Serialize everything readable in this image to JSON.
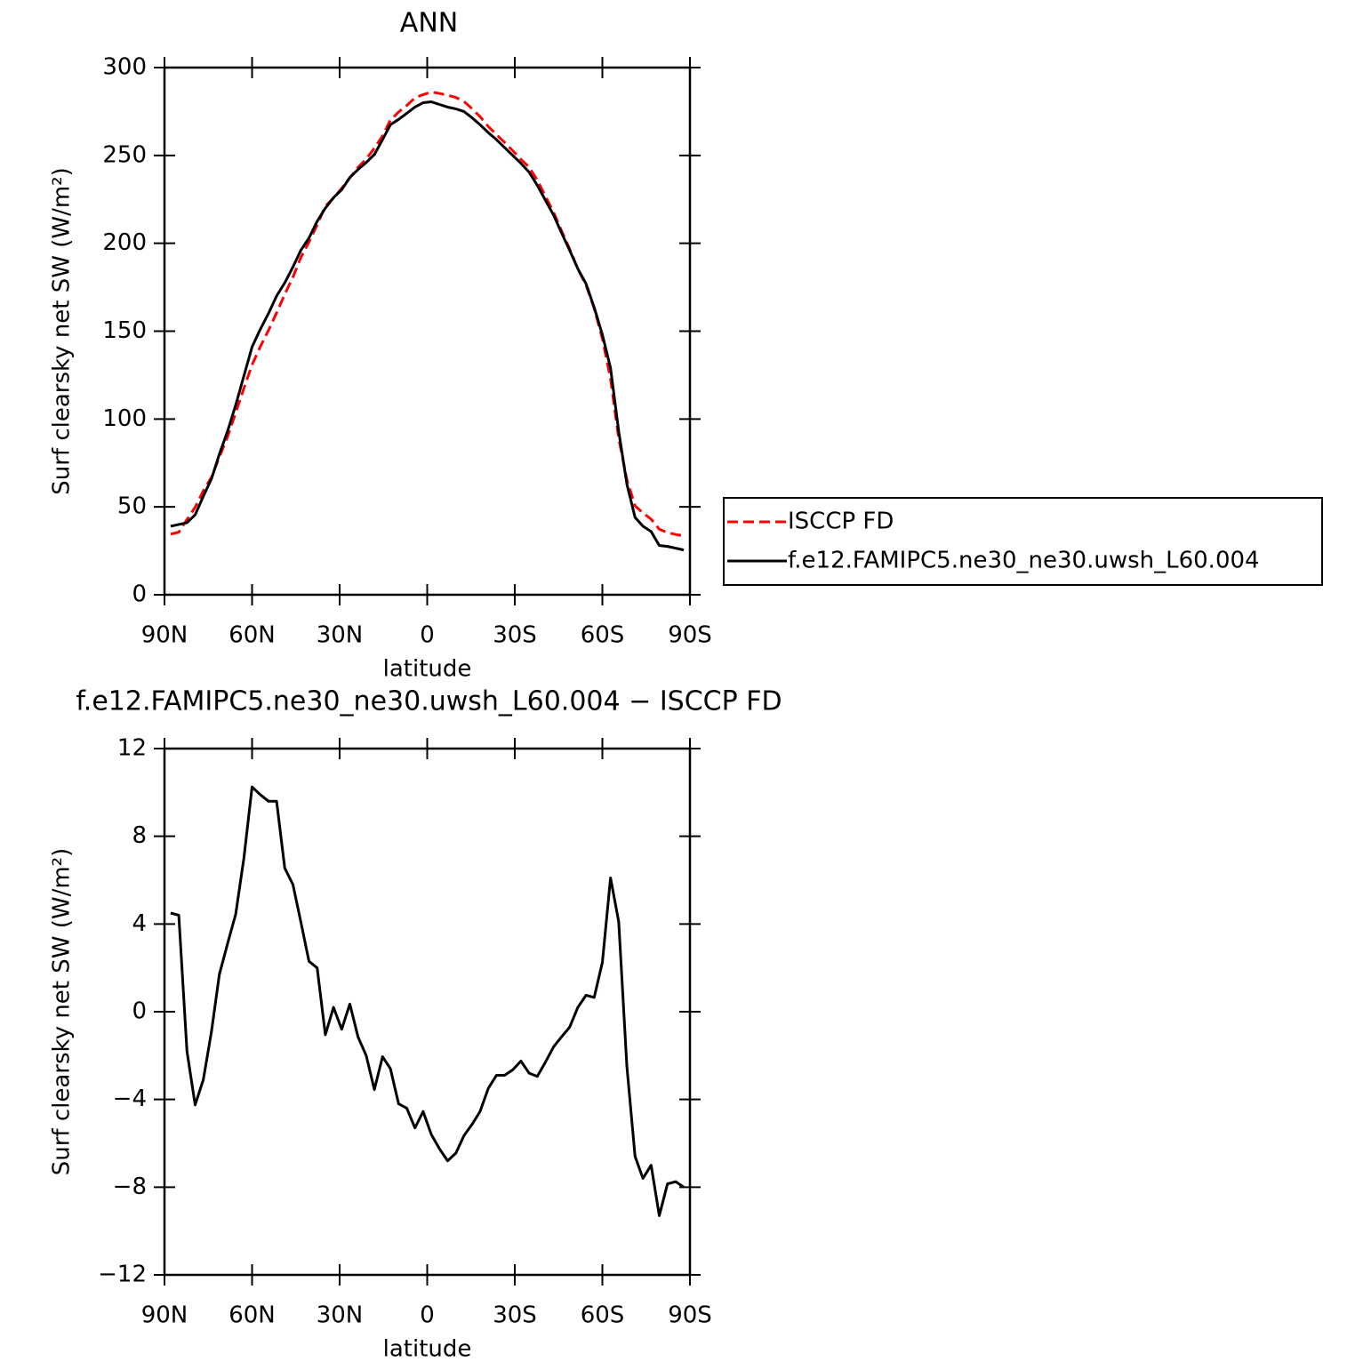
{
  "chart_data": [
    {
      "type": "line",
      "title": "ANN",
      "xlabel": "latitude",
      "ylabel": "Surf clearsky net SW (W/m²)",
      "x": [
        87.9,
        85.1,
        82.3,
        79.5,
        76.7,
        73.9,
        71.2,
        68.4,
        65.6,
        62.8,
        60.0,
        57.2,
        54.4,
        51.6,
        48.8,
        46.0,
        43.3,
        40.5,
        37.7,
        34.9,
        32.1,
        29.3,
        26.5,
        23.7,
        20.9,
        18.1,
        15.3,
        12.6,
        9.8,
        7.0,
        4.2,
        1.4,
        -1.4,
        -4.2,
        -7.0,
        -9.8,
        -12.6,
        -15.3,
        -18.1,
        -20.9,
        -23.7,
        -26.5,
        -29.3,
        -32.1,
        -34.9,
        -37.7,
        -40.5,
        -43.3,
        -46.0,
        -48.8,
        -51.6,
        -54.4,
        -57.2,
        -60.0,
        -62.8,
        -65.6,
        -68.4,
        -71.2,
        -73.9,
        -76.7,
        -79.5,
        -82.3,
        -85.1,
        -87.9
      ],
      "series": [
        {
          "name": "ISCCP FD",
          "color": "#ff0000",
          "dash": true,
          "values": [
            34.5,
            35.6,
            42.8,
            49.8,
            59.1,
            66.9,
            78.3,
            89.9,
            103.6,
            117.5,
            130.8,
            141.1,
            150.4,
            160.4,
            171,
            180.7,
            191.9,
            200.7,
            210.5,
            221.1,
            225.8,
            231.3,
            237.2,
            243.2,
            248,
            254.1,
            261.1,
            270.1,
            274.7,
            278.4,
            282.8,
            284.6,
            286.1,
            285.3,
            284.3,
            283,
            280.7,
            276.7,
            272.1,
            266.5,
            261.9,
            257.4,
            252.7,
            247.8,
            243.3,
            236,
            226.8,
            217.6,
            207.2,
            196.7,
            185.3,
            176.3,
            162.9,
            145.8,
            122.9,
            88.9,
            65.5,
            50.6,
            46.6,
            43,
            37.3,
            35.4,
            34.3,
            33.5
          ]
        },
        {
          "name": "f.e12.FAMIPC5.ne30_ne30.uwsh_L60.004",
          "color": "#000000",
          "dash": false,
          "values": [
            39,
            40,
            41,
            45.5,
            56,
            66,
            80,
            93,
            108,
            124.5,
            141,
            151,
            160,
            170,
            177.5,
            186.5,
            196,
            203,
            212.5,
            220,
            226,
            230.5,
            237.5,
            242,
            246,
            250.5,
            259,
            267.5,
            270.5,
            274,
            277.5,
            280,
            280.5,
            279,
            277.5,
            276.5,
            275,
            271.5,
            267.5,
            263,
            259,
            254.5,
            250,
            245.5,
            240.5,
            233,
            224.5,
            216,
            206,
            196,
            185.5,
            177,
            163.5,
            148,
            129,
            93,
            63,
            44,
            39,
            36,
            28,
            27.5,
            26.5,
            25.5
          ]
        }
      ],
      "xlim": [
        90,
        -90
      ],
      "xticks": [
        {
          "value": 90,
          "label": "90N"
        },
        {
          "value": 60,
          "label": "60N"
        },
        {
          "value": 30,
          "label": "30N"
        },
        0,
        {
          "value": -30,
          "label": "30S"
        },
        {
          "value": -60,
          "label": "60S"
        },
        {
          "value": -90,
          "label": "90S"
        }
      ],
      "ylim": [
        0,
        300
      ],
      "yticks": [
        0,
        50,
        100,
        150,
        200,
        250,
        300
      ],
      "legend": "right"
    },
    {
      "type": "line",
      "title": "f.e12.FAMIPC5.ne30_ne30.uwsh_L60.004 − ISCCP FD",
      "xlabel": "latitude",
      "ylabel": "Surf clearsky net SW (W/m²)",
      "x": [
        87.9,
        85.1,
        82.3,
        79.5,
        76.7,
        73.9,
        71.2,
        68.4,
        65.6,
        62.8,
        60.0,
        57.2,
        54.4,
        51.6,
        48.8,
        46.0,
        43.3,
        40.5,
        37.7,
        34.9,
        32.1,
        29.3,
        26.5,
        23.7,
        20.9,
        18.1,
        15.3,
        12.6,
        9.8,
        7.0,
        4.2,
        1.4,
        -1.4,
        -4.2,
        -7.0,
        -9.8,
        -12.6,
        -15.3,
        -18.1,
        -20.9,
        -23.7,
        -26.5,
        -29.3,
        -32.1,
        -34.9,
        -37.7,
        -40.5,
        -43.3,
        -46.0,
        -48.8,
        -51.6,
        -54.4,
        -57.2,
        -60.0,
        -62.8,
        -65.6,
        -68.4,
        -71.2,
        -73.9,
        -76.7,
        -79.5,
        -82.3,
        -85.1,
        -87.9
      ],
      "series": [
        {
          "color": "#000000",
          "dash": false,
          "values": [
            4.5,
            4.4,
            -1.8,
            -4.25,
            -3.1,
            -0.9,
            1.7,
            3.1,
            4.45,
            7.0,
            10.25,
            9.9,
            9.6,
            9.6,
            6.55,
            5.8,
            4.1,
            2.3,
            2.0,
            -1.05,
            0.2,
            -0.8,
            0.35,
            -1.15,
            -2.0,
            -3.55,
            -2.05,
            -2.6,
            -4.2,
            -4.4,
            -5.3,
            -4.55,
            -5.6,
            -6.25,
            -6.8,
            -6.45,
            -5.65,
            -5.15,
            -4.55,
            -3.5,
            -2.9,
            -2.9,
            -2.65,
            -2.25,
            -2.8,
            -2.95,
            -2.3,
            -1.6,
            -1.15,
            -0.7,
            0.2,
            0.75,
            0.65,
            2.25,
            6.1,
            4.1,
            -2.5,
            -6.6,
            -7.6,
            -7.0,
            -9.3,
            -7.85,
            -7.75,
            -8.0
          ]
        }
      ],
      "xlim": [
        90,
        -90
      ],
      "xticks": [
        {
          "value": 90,
          "label": "90N"
        },
        {
          "value": 60,
          "label": "60N"
        },
        {
          "value": 30,
          "label": "30N"
        },
        0,
        {
          "value": -30,
          "label": "30S"
        },
        {
          "value": -60,
          "label": "60S"
        },
        {
          "value": -90,
          "label": "90S"
        }
      ],
      "ylim": [
        -12,
        12
      ],
      "yticks": [
        {
          "value": -12,
          "label": "−12"
        },
        {
          "value": -8,
          "label": "−8"
        },
        {
          "value": -4,
          "label": "−4"
        },
        0,
        4,
        8,
        12
      ]
    }
  ]
}
